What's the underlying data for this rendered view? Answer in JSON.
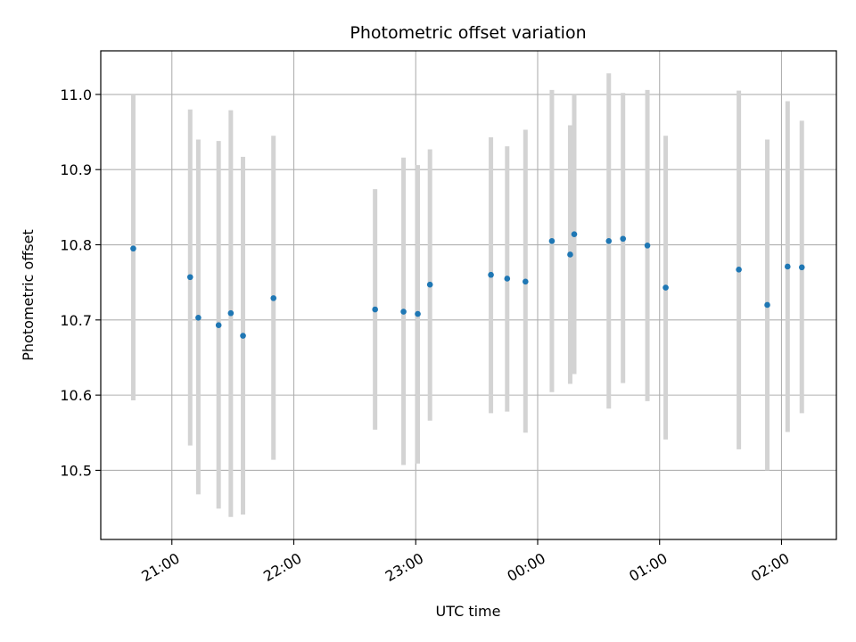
{
  "chart_data": {
    "type": "scatter",
    "title": "Photometric offset variation",
    "xlabel": "UTC time",
    "ylabel": "Photometric offset",
    "x_axis": "time",
    "xlim": [
      "20:25",
      "02:27"
    ],
    "ylim": [
      10.408,
      11.058
    ],
    "x_ticks": [
      {
        "time": "21:00",
        "label": "21:00"
      },
      {
        "time": "22:00",
        "label": "22:00"
      },
      {
        "time": "23:00",
        "label": "23:00"
      },
      {
        "time": "00:00",
        "label": "00:00"
      },
      {
        "time": "01:00",
        "label": "01:00"
      },
      {
        "time": "02:00",
        "label": "02:00"
      }
    ],
    "y_ticks": [
      10.5,
      10.6,
      10.7,
      10.8,
      10.9,
      11.0
    ],
    "y_tick_labels": [
      "10.5",
      "10.6",
      "10.7",
      "10.8",
      "10.9",
      "11.0"
    ],
    "grid": true,
    "colors": {
      "points": "#1f77b4",
      "error_bars": "#d3d3d3",
      "grid": "#b0b0b0"
    },
    "series": [
      {
        "points": [
          {
            "time": "20:41",
            "y": 10.795,
            "low": 10.593,
            "high": 11.0
          },
          {
            "time": "21:09",
            "y": 10.757,
            "low": 10.533,
            "high": 10.98
          },
          {
            "time": "21:13",
            "y": 10.703,
            "low": 10.468,
            "high": 10.94
          },
          {
            "time": "21:23",
            "y": 10.693,
            "low": 10.449,
            "high": 10.938
          },
          {
            "time": "21:29",
            "y": 10.709,
            "low": 10.438,
            "high": 10.979
          },
          {
            "time": "21:35",
            "y": 10.679,
            "low": 10.441,
            "high": 10.917
          },
          {
            "time": "21:50",
            "y": 10.729,
            "low": 10.514,
            "high": 10.945
          },
          {
            "time": "22:40",
            "y": 10.714,
            "low": 10.554,
            "high": 10.874
          },
          {
            "time": "22:54",
            "y": 10.711,
            "low": 10.507,
            "high": 10.916
          },
          {
            "time": "23:01",
            "y": 10.708,
            "low": 10.509,
            "high": 10.906
          },
          {
            "time": "23:07",
            "y": 10.747,
            "low": 10.566,
            "high": 10.927
          },
          {
            "time": "23:37",
            "y": 10.76,
            "low": 10.576,
            "high": 10.943
          },
          {
            "time": "23:45",
            "y": 10.755,
            "low": 10.578,
            "high": 10.931
          },
          {
            "time": "23:54",
            "y": 10.751,
            "low": 10.55,
            "high": 10.953
          },
          {
            "time": "00:07",
            "y": 10.805,
            "low": 10.604,
            "high": 11.006
          },
          {
            "time": "00:16",
            "y": 10.787,
            "low": 10.615,
            "high": 10.959
          },
          {
            "time": "00:18",
            "y": 10.814,
            "low": 10.628,
            "high": 11.0
          },
          {
            "time": "00:35",
            "y": 10.805,
            "low": 10.582,
            "high": 11.028
          },
          {
            "time": "00:42",
            "y": 10.808,
            "low": 10.616,
            "high": 11.002
          },
          {
            "time": "00:54",
            "y": 10.799,
            "low": 10.592,
            "high": 11.006
          },
          {
            "time": "01:03",
            "y": 10.743,
            "low": 10.541,
            "high": 10.945
          },
          {
            "time": "01:39",
            "y": 10.767,
            "low": 10.528,
            "high": 11.005
          },
          {
            "time": "01:53",
            "y": 10.72,
            "low": 10.5,
            "high": 10.94
          },
          {
            "time": "02:03",
            "y": 10.771,
            "low": 10.551,
            "high": 10.991
          },
          {
            "time": "02:10",
            "y": 10.77,
            "low": 10.576,
            "high": 10.965
          }
        ]
      }
    ]
  }
}
